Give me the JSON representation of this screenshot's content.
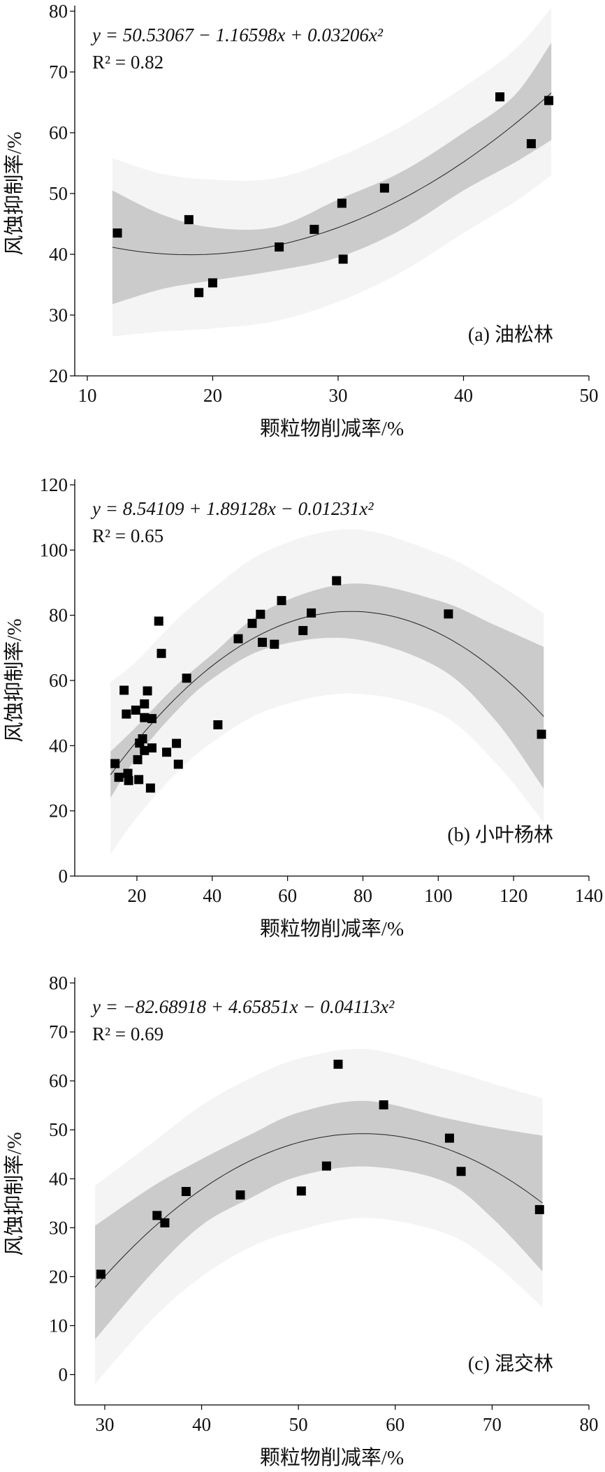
{
  "colors": {
    "inner_band": "#cbcbcb",
    "outer_band": "#f4f4f4",
    "points": "#000000",
    "fit_line": "#222222",
    "axes": "#000000"
  },
  "chart_data": [
    {
      "type": "scatter",
      "panel_label": "(a) 油松林",
      "equation": "y = 50.53067 − 1.16598x + 0.03206x²",
      "r2_label": "R² = 0.82",
      "xlabel": "颗粒物削减率/%",
      "ylabel": "风蚀抑制率/%",
      "xlim": [
        9,
        50
      ],
      "ylim": [
        20,
        80
      ],
      "xticks": [
        "10",
        "20",
        "30",
        "40",
        "50"
      ],
      "yticks": [
        "20",
        "30",
        "40",
        "50",
        "60",
        "70",
        "80"
      ],
      "grid": false,
      "fit": {
        "intercept": 50.53067,
        "b1": -1.16598,
        "b2": 0.03206,
        "x_range": [
          12,
          47
        ]
      },
      "points": [
        [
          12.4,
          43.5
        ],
        [
          18.1,
          45.7
        ],
        [
          18.9,
          33.7
        ],
        [
          20.0,
          35.3
        ],
        [
          25.3,
          41.2
        ],
        [
          28.1,
          44.1
        ],
        [
          30.3,
          48.4
        ],
        [
          30.4,
          39.2
        ],
        [
          33.7,
          50.9
        ],
        [
          42.9,
          65.9
        ],
        [
          45.4,
          58.2
        ],
        [
          46.8,
          65.3
        ]
      ],
      "inner_band": [
        [
          12,
          31.8,
          50.5
        ],
        [
          16,
          34.3,
          46.5
        ],
        [
          20,
          35.7,
          44.4
        ],
        [
          25,
          37.3,
          44.5
        ],
        [
          30,
          39.5,
          49.0
        ],
        [
          35,
          44.0,
          53.5
        ],
        [
          40,
          50.5,
          60.0
        ],
        [
          44,
          55.0,
          66.0
        ],
        [
          47,
          58.8,
          74.8
        ]
      ],
      "outer_band": [
        [
          12,
          26.5,
          55.8
        ],
        [
          16,
          27.3,
          53.2
        ],
        [
          20,
          27.8,
          52.3
        ],
        [
          25,
          29.0,
          52.5
        ],
        [
          30,
          32.2,
          56.0
        ],
        [
          35,
          37.0,
          61.0
        ],
        [
          40,
          43.5,
          67.5
        ],
        [
          44,
          48.5,
          73.5
        ],
        [
          47,
          53.0,
          80.5
        ]
      ]
    },
    {
      "type": "scatter",
      "panel_label": "(b) 小叶杨林",
      "equation": "y = 8.54109 + 1.89128x − 0.01231x²",
      "r2_label": "R² = 0.65",
      "xlabel": "颗粒物削减率/%",
      "ylabel": "风蚀抑制率/%",
      "xlim": [
        3.5,
        140
      ],
      "ylim": [
        0,
        120
      ],
      "xticks": [
        "20",
        "40",
        "60",
        "80",
        "100",
        "120",
        "140"
      ],
      "yticks": [
        "0",
        "20",
        "40",
        "60",
        "80",
        "100",
        "120"
      ],
      "grid": false,
      "fit": {
        "intercept": 8.54109,
        "b1": 1.89128,
        "b2": -0.01231,
        "x_range": [
          13,
          128
        ]
      },
      "points": [
        [
          14.2,
          34.5
        ],
        [
          15.2,
          30.3
        ],
        [
          16.6,
          57.0
        ],
        [
          17.2,
          49.7
        ],
        [
          17.6,
          31.5
        ],
        [
          17.8,
          29.3
        ],
        [
          19.7,
          50.9
        ],
        [
          20.2,
          35.7
        ],
        [
          20.5,
          29.6
        ],
        [
          20.7,
          40.8
        ],
        [
          22.0,
          52.8
        ],
        [
          22.0,
          48.6
        ],
        [
          21.5,
          42.1
        ],
        [
          22.0,
          38.5
        ],
        [
          22.8,
          56.8
        ],
        [
          23.6,
          27.0
        ],
        [
          24.0,
          48.3
        ],
        [
          24.0,
          39.3
        ],
        [
          25.8,
          78.2
        ],
        [
          26.5,
          68.3
        ],
        [
          27.9,
          38.0
        ],
        [
          30.5,
          40.7
        ],
        [
          31.0,
          34.3
        ],
        [
          33.2,
          60.7
        ],
        [
          41.5,
          46.4
        ],
        [
          46.9,
          72.8
        ],
        [
          50.6,
          77.5
        ],
        [
          52.8,
          80.3
        ],
        [
          53.3,
          71.7
        ],
        [
          56.5,
          71.1
        ],
        [
          58.4,
          84.5
        ],
        [
          64.1,
          75.3
        ],
        [
          66.3,
          80.7
        ],
        [
          73.0,
          90.6
        ],
        [
          102.7,
          80.4
        ],
        [
          127.4,
          43.5
        ]
      ],
      "inner_band": [
        [
          13,
          24.0,
          38.2
        ],
        [
          20,
          36.5,
          46.0
        ],
        [
          30,
          50.0,
          58.0
        ],
        [
          40,
          60.5,
          68.0
        ],
        [
          55,
          70.0,
          82.0
        ],
        [
          77,
          72.8,
          89.7
        ],
        [
          100,
          64.0,
          84.5
        ],
        [
          115,
          48.0,
          77.0
        ],
        [
          128,
          26.8,
          70.3
        ]
      ],
      "outer_band": [
        [
          13,
          6.7,
          59.5
        ],
        [
          20,
          18.0,
          66.0
        ],
        [
          30,
          31.0,
          78.0
        ],
        [
          40,
          41.0,
          88.0
        ],
        [
          55,
          51.0,
          100.0
        ],
        [
          77,
          56.0,
          106.4
        ],
        [
          100,
          50.0,
          99.0
        ],
        [
          115,
          35.0,
          90.0
        ],
        [
          128,
          16.5,
          80.6
        ]
      ]
    },
    {
      "type": "scatter",
      "panel_label": "(c) 混交林",
      "equation": "y = −82.68918 + 4.65851x − 0.04113x²",
      "r2_label": "R² = 0.69",
      "xlabel": "颗粒物削减率/%",
      "ylabel": "风蚀抑制率/%",
      "xlim": [
        26.9,
        80
      ],
      "ylim": [
        -6.2,
        80
      ],
      "xticks": [
        "30",
        "40",
        "50",
        "60",
        "70",
        "80"
      ],
      "yticks": [
        "0",
        "10",
        "20",
        "30",
        "40",
        "50",
        "60",
        "70",
        "80"
      ],
      "grid": false,
      "fit": {
        "intercept": -82.68918,
        "b1": 4.65851,
        "b2": -0.04113,
        "x_range": [
          29,
          75.2
        ]
      },
      "points": [
        [
          29.6,
          20.5
        ],
        [
          35.4,
          32.5
        ],
        [
          36.2,
          31.0
        ],
        [
          38.4,
          37.4
        ],
        [
          44.0,
          36.7
        ],
        [
          50.3,
          37.5
        ],
        [
          52.9,
          42.6
        ],
        [
          54.1,
          63.4
        ],
        [
          58.8,
          55.1
        ],
        [
          65.6,
          48.3
        ],
        [
          66.8,
          41.5
        ],
        [
          74.9,
          33.7
        ]
      ],
      "inner_band": [
        [
          29,
          7.2,
          30.4
        ],
        [
          35,
          21.0,
          38.5
        ],
        [
          40,
          30.5,
          44.0
        ],
        [
          45,
          36.0,
          49.0
        ],
        [
          50,
          40.5,
          53.5
        ],
        [
          57,
          42.5,
          55.9
        ],
        [
          65,
          39.5,
          52.5
        ],
        [
          70,
          32.0,
          50.5
        ],
        [
          75.2,
          21.1,
          48.8
        ]
      ],
      "outer_band": [
        [
          29,
          -1.9,
          38.6
        ],
        [
          35,
          11.5,
          47.5
        ],
        [
          40,
          20.0,
          55.0
        ],
        [
          45,
          26.0,
          60.5
        ],
        [
          50,
          29.5,
          64.5
        ],
        [
          57,
          32.0,
          66.5
        ],
        [
          65,
          29.0,
          62.5
        ],
        [
          70,
          23.0,
          59.5
        ],
        [
          75.2,
          13.7,
          56.4
        ]
      ]
    }
  ]
}
